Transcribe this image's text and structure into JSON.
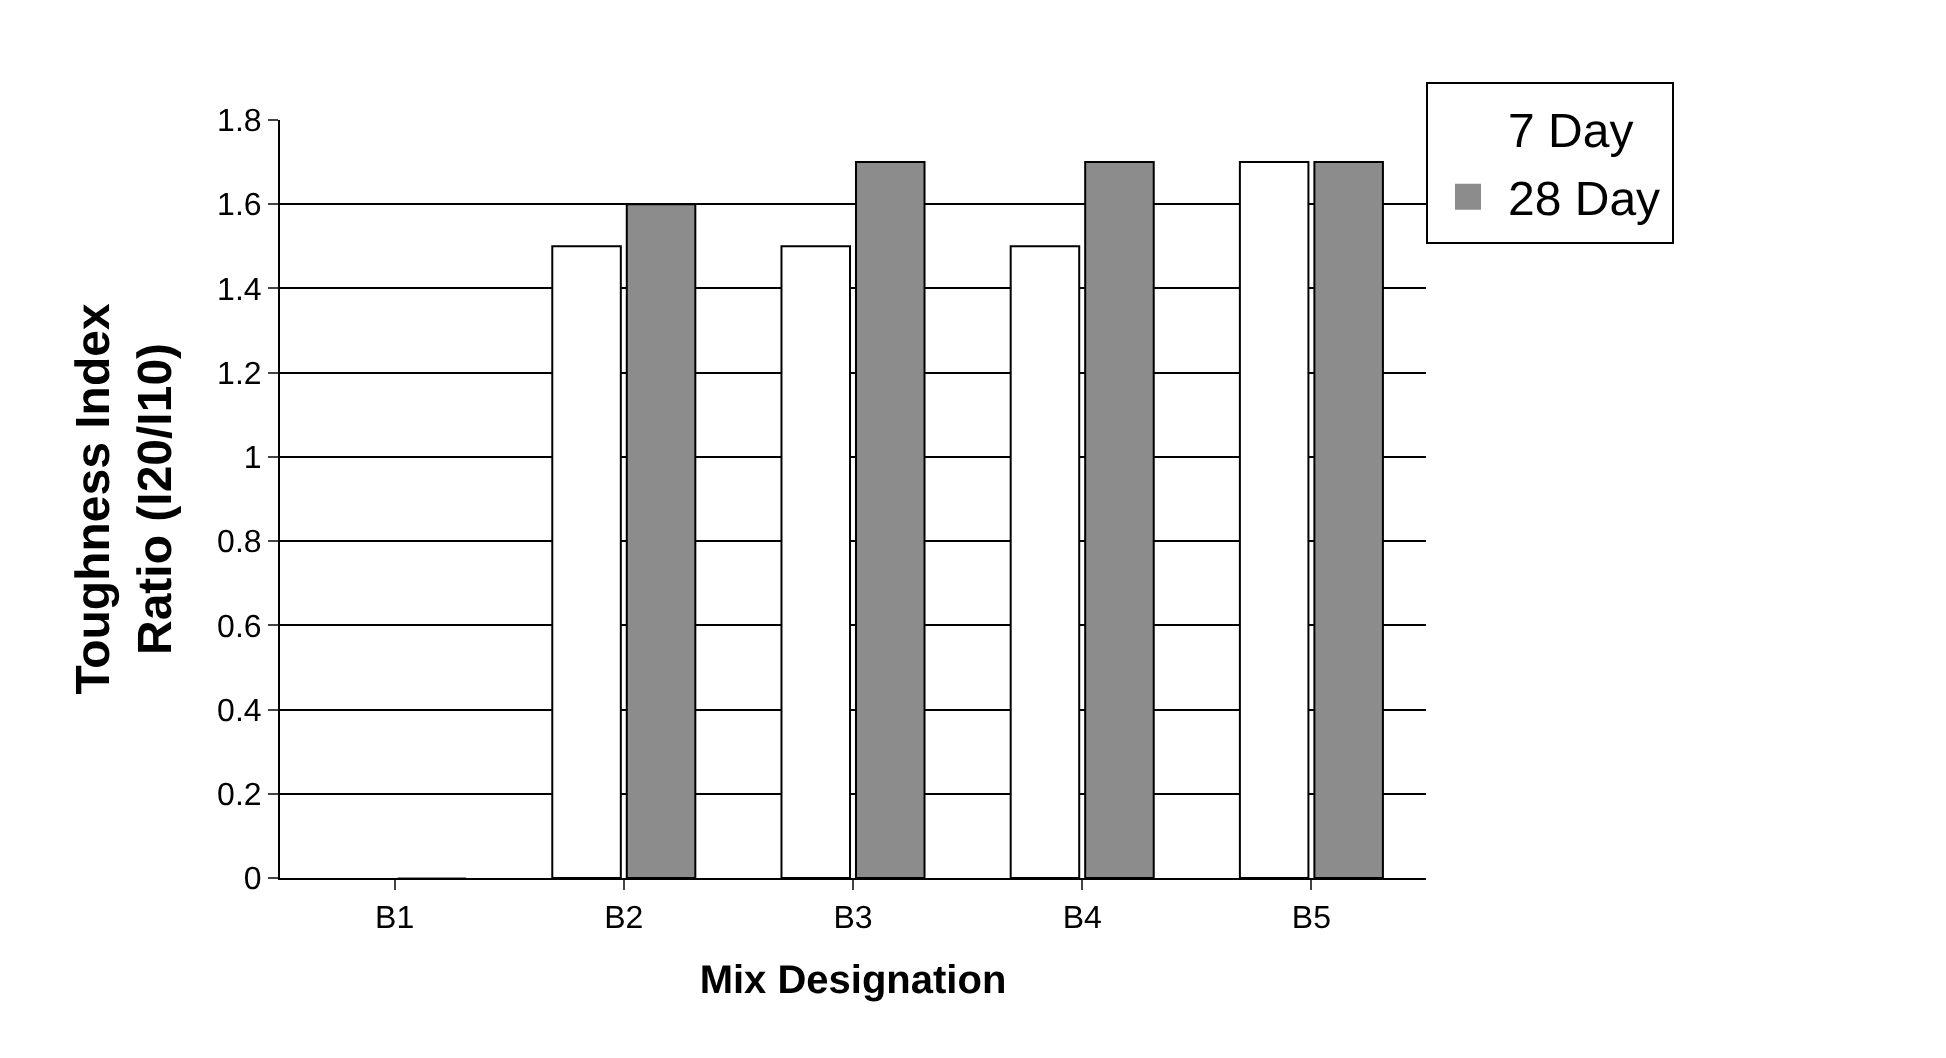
{
  "chart_data": {
    "type": "bar",
    "xlabel": "Mix Designation",
    "ylabel": "Toughness Index Ratio (I20/I10)",
    "categories": [
      "B1",
      "B2",
      "B3",
      "B4",
      "B5"
    ],
    "series": [
      {
        "name": "7 Day",
        "color": "#ffffff",
        "values": [
          0,
          1.5,
          1.5,
          1.5,
          1.7
        ]
      },
      {
        "name": "28 Day",
        "color": "#8c8c8c",
        "values": [
          0,
          1.6,
          1.7,
          1.7,
          1.7
        ]
      }
    ],
    "ylim": [
      0,
      1.8
    ],
    "yticks": [
      0,
      0.2,
      0.4,
      0.6,
      0.8,
      1,
      1.2,
      1.4,
      1.6,
      1.8
    ],
    "grid": "y",
    "legend": "top right"
  }
}
